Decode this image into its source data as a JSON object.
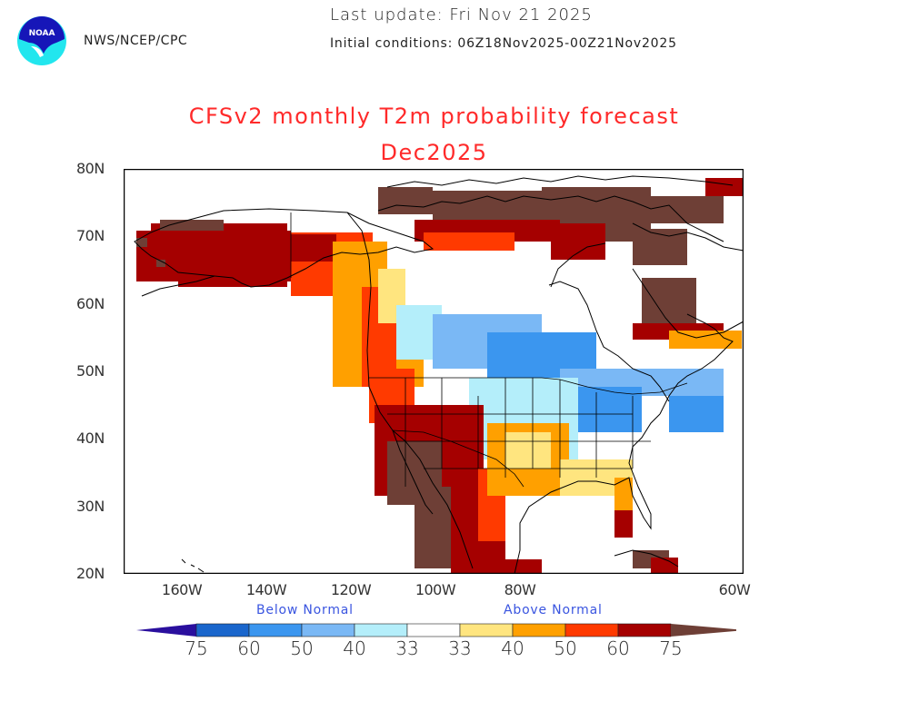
{
  "header": {
    "agency": "NWS/NCEP/CPC",
    "logo": "noaa-logo",
    "last_update": "Last update: Fri Nov 21 2025",
    "initial_conditions": "Initial conditions: 06Z18Nov2025-00Z21Nov2025"
  },
  "title": {
    "line1": "CFSv2 monthly T2m probability forecast",
    "line2": "Dec2025",
    "color": "#ff2a2a"
  },
  "map": {
    "projection": "lat-lon",
    "lat_range": [
      20,
      80
    ],
    "lon_range": [
      -170,
      -60
    ],
    "lat_labels": [
      "80N",
      "70N",
      "60N",
      "50N",
      "40N",
      "30N",
      "20N"
    ],
    "lon_labels": [
      "160W",
      "140W",
      "120W",
      "100W",
      "80W",
      "60W"
    ],
    "regions": [
      {
        "name": "Alaska",
        "category": "above-60"
      },
      {
        "name": "Yukon / Western Canada interior",
        "category": "above-50"
      },
      {
        "name": "Canadian Arctic Archipelago",
        "category": "above-75"
      },
      {
        "name": "Hudson Bay region",
        "category": "near-normal"
      },
      {
        "name": "Prairies / Manitoba / Ontario",
        "category": "below-50"
      },
      {
        "name": "US Southwest / Great Basin",
        "category": "above-60"
      },
      {
        "name": "Northern Mexico interior",
        "category": "above-75"
      },
      {
        "name": "Texas / Southern Plains",
        "category": "above-40"
      },
      {
        "name": "Gulf Coast states",
        "category": "above-33"
      },
      {
        "name": "Florida",
        "category": "above-60"
      },
      {
        "name": "Upper Midwest / Great Lakes",
        "category": "below-50"
      },
      {
        "name": "Northeast US",
        "category": "below-40"
      },
      {
        "name": "Labrador / Northern Quebec",
        "category": "above-75"
      }
    ]
  },
  "legend": {
    "below_label": "Below Normal",
    "above_label": "Above Normal",
    "below": [
      {
        "label": "75",
        "color": "#2a0f9e"
      },
      {
        "label": "60",
        "color": "#1a66cc"
      },
      {
        "label": "50",
        "color": "#3b96ef"
      },
      {
        "label": "40",
        "color": "#7ab8f5"
      },
      {
        "label": "33",
        "color": "#b4eefa"
      }
    ],
    "neutral_color": "#ffffff",
    "above": [
      {
        "label": "33",
        "color": "#ffe57f"
      },
      {
        "label": "40",
        "color": "#ffa000"
      },
      {
        "label": "50",
        "color": "#ff3a00"
      },
      {
        "label": "60",
        "color": "#a50000"
      },
      {
        "label": "75",
        "color": "#6e3f36"
      }
    ]
  }
}
